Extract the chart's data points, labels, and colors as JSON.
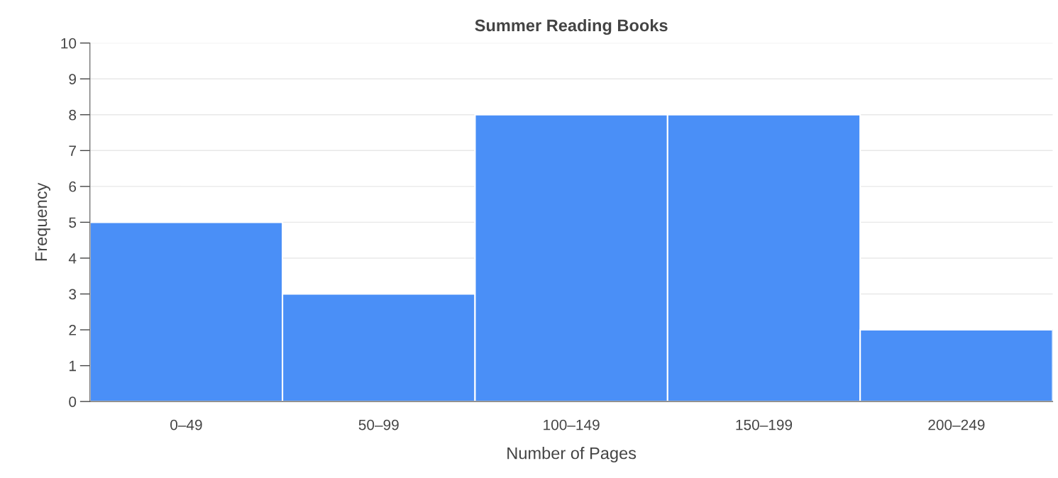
{
  "chart_data": {
    "type": "bar",
    "title": "Summer Reading Books",
    "xlabel": "Number of Pages",
    "ylabel": "Frequency",
    "categories": [
      "0–49",
      "50–99",
      "100–149",
      "150–199",
      "200–249"
    ],
    "values": [
      5,
      3,
      8,
      8,
      2
    ],
    "color": "#4a8ff7",
    "ylim": [
      0,
      10
    ],
    "yticks": [
      0,
      1,
      2,
      3,
      4,
      5,
      6,
      7,
      8,
      9,
      10
    ],
    "grid": "y"
  }
}
